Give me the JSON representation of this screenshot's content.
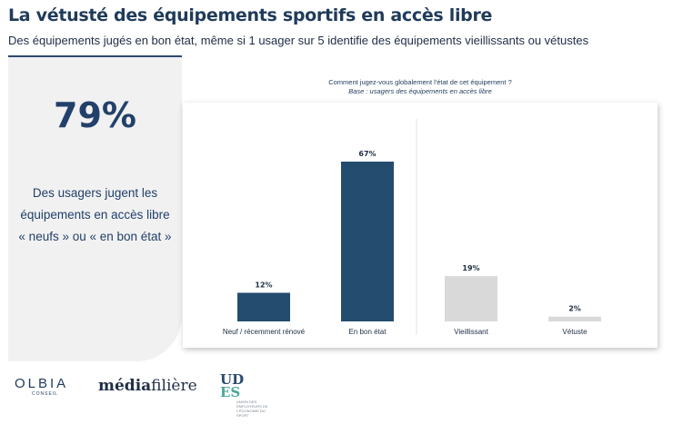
{
  "header": {
    "title": "La vétusté des équipements sportifs en accès libre",
    "subtitle": "Des équipements jugés en bon état, même si 1 usager sur 5 identifie des équipements vieillissants ou vétustes"
  },
  "kpi": {
    "value": "79%",
    "text": "Des usagers jugent les équipements en accès libre « neufs » ou « en bon état »"
  },
  "colors": {
    "accent_dark": "#244c6f",
    "neutral_bar": "#d9d9d9",
    "title": "#1f3b5a",
    "panel": "#f1f1f1"
  },
  "chart_data": {
    "type": "bar",
    "title": "Comment jugez-vous globalement l'état de cet équipement ?",
    "subtitle": "Base : usagers des équipements en accès libre",
    "categories": [
      "Neuf / récemment rénové",
      "En bon état",
      "Vieillissant",
      "Vétuste"
    ],
    "values": [
      12,
      67,
      19,
      2
    ],
    "value_labels": [
      "12%",
      "67%",
      "19%",
      "2%"
    ],
    "unit": "%",
    "ylim": [
      0,
      70
    ],
    "grid": false,
    "highlight_categories": [
      "Neuf / récemment rénové",
      "En bon état"
    ],
    "xlabel": "",
    "ylabel": ""
  },
  "footer": {
    "logos": {
      "olbia": "OLBIA",
      "olbia_sub": "CONSEIL",
      "media_part1": "média",
      "media_part2": "filière",
      "udes_line1": "UD",
      "udes_line2": "ES",
      "udes_sub": "UNION DES EMPLOYEURS DE L'ÉCONOMIE DU SPORT"
    }
  }
}
